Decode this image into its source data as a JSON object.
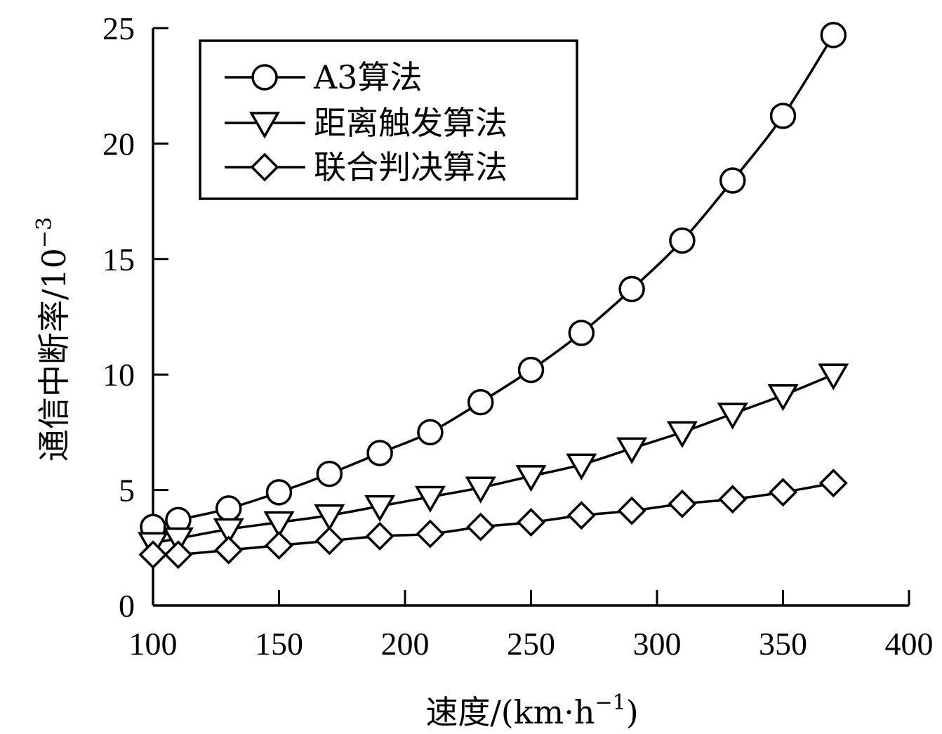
{
  "chart_data": {
    "type": "line",
    "xlabel": "速度/(km·h",
    "xlabel_sup": "−1",
    "xlabel_tail": ")",
    "ylabel": "通信中断率/10",
    "ylabel_sup": "−3",
    "xlim": [
      100,
      400
    ],
    "ylim": [
      0,
      25
    ],
    "xticks": [
      "100",
      "150",
      "200",
      "250",
      "300",
      "350",
      "400"
    ],
    "yticks": [
      "0",
      "5",
      "10",
      "15",
      "20",
      "25"
    ],
    "grid": false,
    "legend_position": "top-left",
    "colors": {
      "line": "#000000",
      "background": "#ffffff"
    },
    "series": [
      {
        "name": "A3算法",
        "marker": "circle",
        "x": [
          100,
          110,
          130,
          150,
          170,
          190,
          210,
          230,
          250,
          270,
          290,
          310,
          330,
          350,
          370
        ],
        "y": [
          3.4,
          3.7,
          4.2,
          4.9,
          5.7,
          6.6,
          7.5,
          8.8,
          10.2,
          11.8,
          13.7,
          15.8,
          18.4,
          21.2,
          24.7
        ]
      },
      {
        "name": "距离触发算法",
        "marker": "triangle-down",
        "x": [
          100,
          110,
          130,
          150,
          170,
          190,
          210,
          230,
          250,
          270,
          290,
          310,
          330,
          350,
          370
        ],
        "y": [
          2.7,
          2.9,
          3.3,
          3.6,
          3.9,
          4.3,
          4.7,
          5.1,
          5.6,
          6.1,
          6.8,
          7.5,
          8.3,
          9.1,
          10.0
        ]
      },
      {
        "name": "联合判决算法",
        "marker": "diamond",
        "x": [
          100,
          110,
          130,
          150,
          170,
          190,
          210,
          230,
          250,
          270,
          290,
          310,
          330,
          350,
          370
        ],
        "y": [
          2.2,
          2.2,
          2.4,
          2.6,
          2.8,
          3.0,
          3.1,
          3.4,
          3.6,
          3.9,
          4.1,
          4.4,
          4.6,
          4.9,
          5.3
        ]
      }
    ]
  }
}
